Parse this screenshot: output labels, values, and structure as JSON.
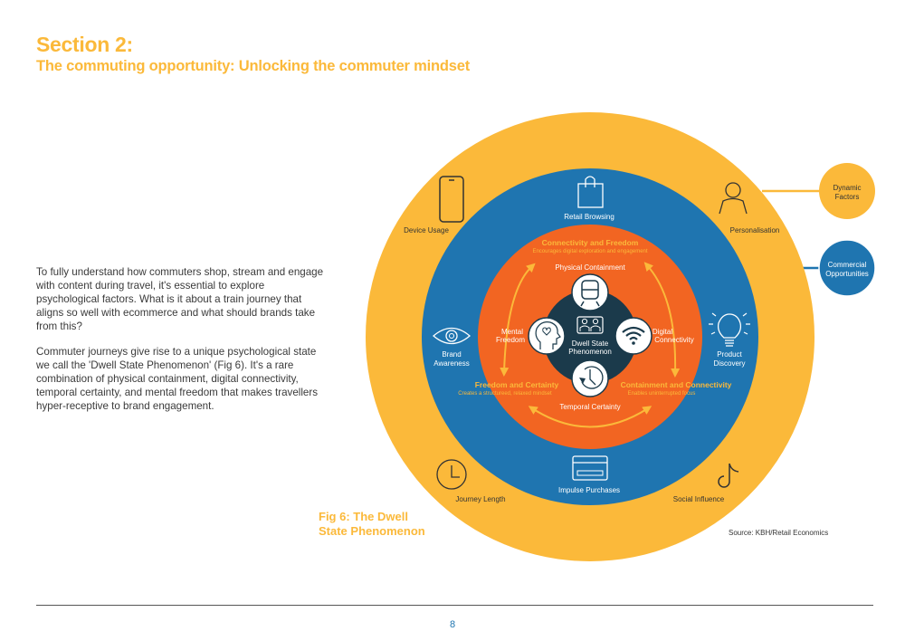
{
  "header": {
    "section": "Section 2:",
    "subtitle": "The commuting opportunity: Unlocking the commuter mindset"
  },
  "body": {
    "paragraph1": "To fully understand how commuters shop, stream and engage with content during travel, it's essential to explore psychological factors. What is it about a train journey that aligns so well with ecommerce and what should brands take from this?",
    "paragraph2": "Commuter journeys give rise to a unique psychological state we call the 'Dwell State Phenomenon' (Fig 6). It's a rare combination of physical containment, digital connectivity, temporal certainty, and mental freedom that makes travellers hyper-receptive to brand engagement."
  },
  "figure": {
    "caption_line1": "Fig 6: The Dwell",
    "caption_line2": "State Phenomenon",
    "source": "Source: KBH/Retail Economics",
    "colors": {
      "dynamic": "#FBB93A",
      "commercial": "#1F75B0",
      "core": "#F26522",
      "center": "#1B3A4B"
    },
    "legend": {
      "dynamic": "Dynamic Factors",
      "commercial": "Commercial Opportunities"
    },
    "dynamic_factors": [
      {
        "label": "Device Usage",
        "icon": "smartphone-icon"
      },
      {
        "label": "Personalisation",
        "icon": "person-icon"
      },
      {
        "label": "Journey Length",
        "icon": "clock-icon"
      },
      {
        "label": "Social Influence",
        "icon": "tiktok-icon"
      }
    ],
    "commercial_opportunities": [
      {
        "label": "Retail Browsing",
        "icon": "shopping-bag-icon"
      },
      {
        "label": "Brand Awareness",
        "icon": "eye-icon"
      },
      {
        "label": "Product Discovery",
        "icon": "lightbulb-icon"
      },
      {
        "label": "Impulse Purchases",
        "icon": "credit-card-icon"
      }
    ],
    "pillars": {
      "top": "Physical Containment",
      "left_1": "Mental",
      "left_2": "Freedom",
      "right_1": "Digital",
      "right_2": "Connectivity",
      "bottom": "Temporal Certainty"
    },
    "center": {
      "line1": "Dwell State",
      "line2": "Phenomenon",
      "icon": "passengers-icon"
    },
    "links": [
      {
        "title": "Connectivity and Freedom",
        "desc": "Encourages digital exploration and engagement"
      },
      {
        "title": "Freedom and Certainty",
        "desc": "Creates a structureed, relaxed mindset"
      },
      {
        "title": "Containment and Connectivity",
        "desc": "Enables uninterrupted focus"
      }
    ]
  },
  "footer": {
    "page": "8"
  }
}
